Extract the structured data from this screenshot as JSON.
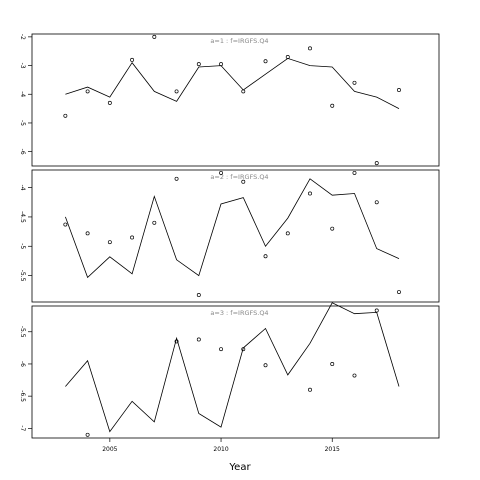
{
  "chart_data": {
    "type": "line",
    "xlabel": "Year",
    "xlim": [
      2001.5,
      2019.8
    ],
    "xticks": [
      2005,
      2010,
      2015
    ],
    "panels": [
      {
        "title": "a=1  :  f=IRGFS.Q4",
        "ylim": [
          -6.5,
          -1.9
        ],
        "yticks": [
          -2,
          -3,
          -4,
          -5,
          -6
        ],
        "line": {
          "x": [
            2003,
            2004,
            2005,
            2006,
            2007,
            2008,
            2009,
            2010,
            2011,
            2012,
            2013,
            2014,
            2015,
            2016,
            2017,
            2018
          ],
          "y": [
            -4.0,
            -3.75,
            -4.1,
            -2.9,
            -3.9,
            -4.25,
            -3.05,
            -3.0,
            -3.85,
            -3.3,
            -2.75,
            -3.0,
            -3.05,
            -3.9,
            -4.1,
            -4.5
          ]
        },
        "points": {
          "x": [
            2003,
            2004,
            2005,
            2006,
            2007,
            2008,
            2009,
            2010,
            2011,
            2012,
            2013,
            2014,
            2015,
            2016,
            2017,
            2018
          ],
          "y": [
            -4.75,
            -3.9,
            -4.3,
            -2.8,
            -2.0,
            -3.9,
            -2.95,
            -2.95,
            -3.9,
            -2.85,
            -2.7,
            -2.4,
            -4.4,
            -3.6,
            -6.4,
            -3.85
          ]
        }
      },
      {
        "title": "a=2  :  f=IRGFS.Q4",
        "ylim": [
          -5.95,
          -3.7
        ],
        "yticks": [
          -4.0,
          -4.5,
          -5.0,
          -5.5
        ],
        "line": {
          "x": [
            2003,
            2004,
            2005,
            2006,
            2007,
            2008,
            2009,
            2010,
            2011,
            2012,
            2013,
            2014,
            2015,
            2016,
            2017,
            2018
          ],
          "y": [
            -4.5,
            -5.53,
            -5.18,
            -5.47,
            -4.15,
            -5.23,
            -5.5,
            -4.28,
            -4.17,
            -5.0,
            -4.52,
            -3.85,
            -4.13,
            -4.1,
            -5.04,
            -5.21
          ]
        },
        "points": {
          "x": [
            2003,
            2004,
            2005,
            2006,
            2007,
            2008,
            2009,
            2010,
            2011,
            2012,
            2013,
            2014,
            2015,
            2016,
            2017,
            2018
          ],
          "y": [
            -4.63,
            -4.78,
            -4.93,
            -4.85,
            -4.6,
            -3.85,
            -5.83,
            -3.75,
            -3.9,
            -5.17,
            -4.78,
            -4.1,
            -4.7,
            -3.75,
            -4.25,
            -5.78
          ]
        }
      },
      {
        "title": "a=3  :  f=IRGFS.Q4",
        "ylim": [
          -7.15,
          -5.1
        ],
        "yticks": [
          -5.5,
          -6.0,
          -6.5,
          -7.0
        ],
        "line": {
          "x": [
            2003,
            2004,
            2005,
            2006,
            2007,
            2008,
            2009,
            2010,
            2011,
            2012,
            2013,
            2014,
            2015,
            2016,
            2017,
            2018
          ],
          "y": [
            -6.35,
            -5.95,
            -7.05,
            -6.58,
            -6.9,
            -5.6,
            -6.77,
            -6.98,
            -5.75,
            -5.45,
            -6.17,
            -5.68,
            -5.05,
            -5.22,
            -5.2,
            -6.35
          ]
        },
        "points": {
          "x": [
            2004,
            2008,
            2009,
            2010,
            2011,
            2012,
            2014,
            2015,
            2016,
            2017
          ],
          "y": [
            -7.1,
            -5.65,
            -5.62,
            -5.77,
            -5.77,
            -6.02,
            -6.4,
            -6.0,
            -6.18,
            -5.17
          ]
        }
      }
    ]
  }
}
